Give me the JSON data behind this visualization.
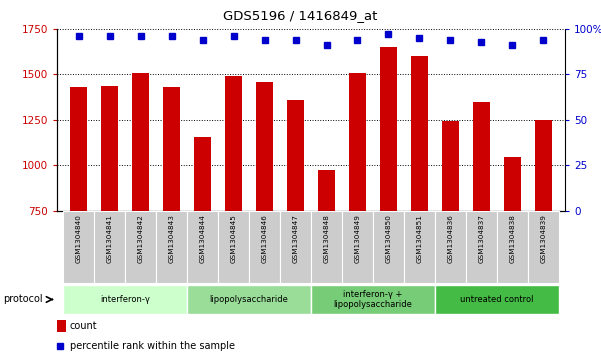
{
  "title": "GDS5196 / 1416849_at",
  "samples": [
    "GSM1304840",
    "GSM1304841",
    "GSM1304842",
    "GSM1304843",
    "GSM1304844",
    "GSM1304845",
    "GSM1304846",
    "GSM1304847",
    "GSM1304848",
    "GSM1304849",
    "GSM1304850",
    "GSM1304851",
    "GSM1304836",
    "GSM1304837",
    "GSM1304838",
    "GSM1304839"
  ],
  "counts": [
    1430,
    1435,
    1510,
    1430,
    1155,
    1490,
    1460,
    1360,
    975,
    1510,
    1650,
    1600,
    1245,
    1350,
    1045,
    1250
  ],
  "percentile_values": [
    96,
    96,
    96,
    96,
    94,
    96,
    94,
    94,
    91,
    94,
    97,
    95,
    94,
    93,
    91,
    94
  ],
  "groups": [
    {
      "label": "interferon-γ",
      "start": 0,
      "end": 4,
      "color": "#ccffcc"
    },
    {
      "label": "lipopolysaccharide",
      "start": 4,
      "end": 8,
      "color": "#aaddaa"
    },
    {
      "label": "interferon-γ +\nlipopolysaccharide",
      "start": 8,
      "end": 12,
      "color": "#77cc77"
    },
    {
      "label": "untreated control",
      "start": 12,
      "end": 16,
      "color": "#55bb55"
    }
  ],
  "ylim_left": [
    750,
    1750
  ],
  "ylim_right": [
    0,
    100
  ],
  "yticks_left": [
    750,
    1000,
    1250,
    1500,
    1750
  ],
  "yticks_right": [
    0,
    25,
    50,
    75,
    100
  ],
  "bar_color": "#cc0000",
  "dot_color": "#0000cc",
  "label_bg": "#cccccc",
  "grid_color": "#000000"
}
